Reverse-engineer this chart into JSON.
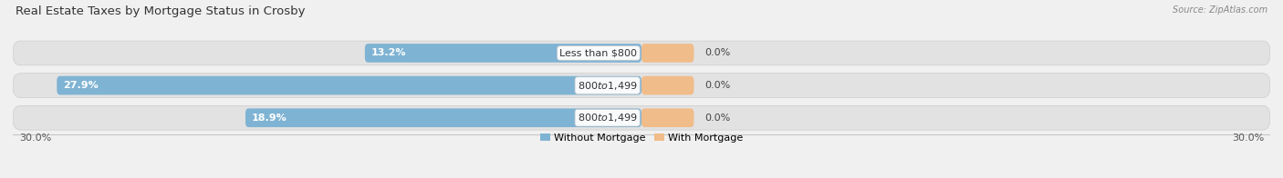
{
  "title": "Real Estate Taxes by Mortgage Status in Crosby",
  "source": "Source: ZipAtlas.com",
  "categories": [
    "Less than $800",
    "$800 to $1,499",
    "$800 to $1,499"
  ],
  "without_mortgage": [
    13.2,
    27.9,
    18.9
  ],
  "with_mortgage": [
    0.0,
    0.0,
    0.0
  ],
  "with_mortgage_display": [
    2.5,
    2.5,
    2.5
  ],
  "bar_color_without": "#7fb3d3",
  "bar_color_with": "#f0bc8a",
  "bar_bg_color": "#e2e2e2",
  "xlim_left": -30.0,
  "xlim_right": 30.0,
  "x_left_label": "30.0%",
  "x_right_label": "30.0%",
  "legend_without": "Without Mortgage",
  "legend_with": "With Mortgage",
  "bg_color": "#f0f0f0",
  "title_fontsize": 9.5,
  "bar_label_fontsize": 8,
  "cat_label_fontsize": 8,
  "legend_fontsize": 8,
  "source_fontsize": 7
}
